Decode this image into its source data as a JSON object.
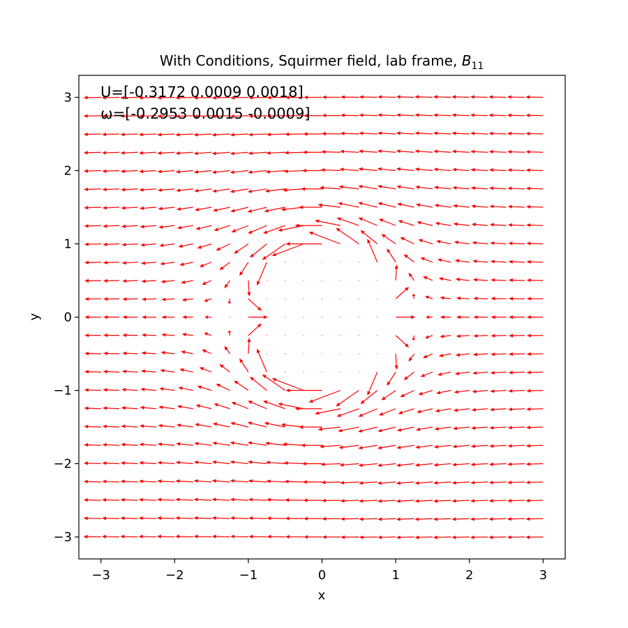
{
  "chart_data": {
    "type": "quiver",
    "title_main": "With Conditions, Squirmer field, lab frame, ",
    "title_sym": "B",
    "title_sub": "11",
    "xlabel": "x",
    "ylabel": "y",
    "xlim": [
      -3.3,
      3.3
    ],
    "ylim": [
      -3.3,
      3.3
    ],
    "xticks": [
      -3,
      -2,
      -1,
      0,
      1,
      2,
      3
    ],
    "yticks": [
      -3,
      -2,
      -1,
      0,
      1,
      2,
      3
    ],
    "xtick_labels": [
      "−3",
      "−2",
      "−1",
      "0",
      "1",
      "2",
      "3"
    ],
    "ytick_labels": [
      "−3",
      "−2",
      "−1",
      "0",
      "1",
      "2",
      "3"
    ],
    "grid": false,
    "arrow_color": "#ff0000",
    "annotations": [
      "U=[-0.3172  0.0009  0.0018]",
      "ω=[-0.2953  0.0015 -0.0009]"
    ],
    "field": {
      "grid_min": -3,
      "grid_max": 3,
      "grid_n": 25,
      "U_swim": -0.3172,
      "body_radius": 1.0,
      "B1": 1.0,
      "B2": 0.0
    }
  }
}
